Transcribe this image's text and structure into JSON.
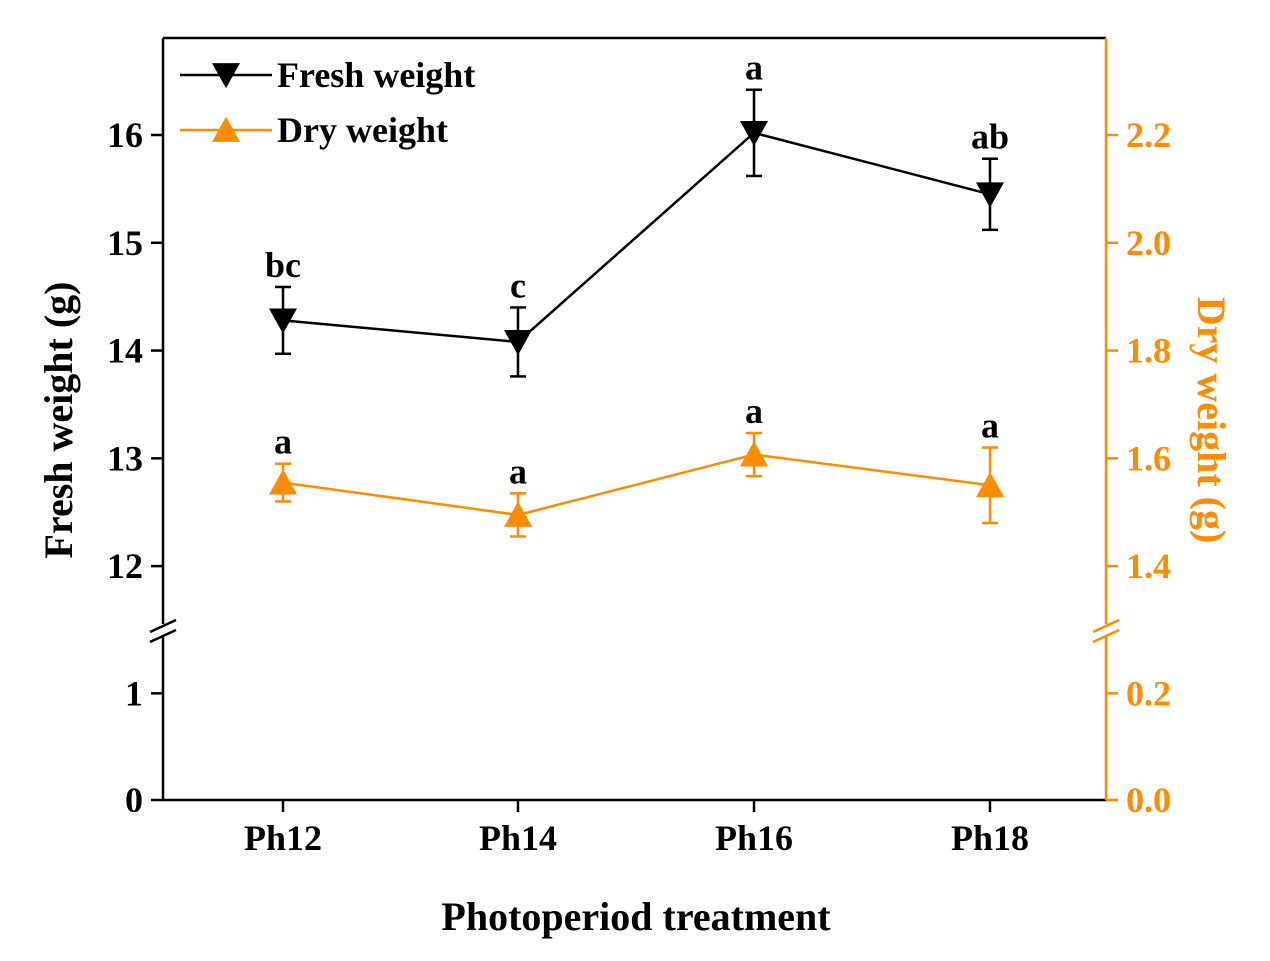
{
  "chart_data": {
    "type": "line",
    "xlabel": "Photoperiod treatment",
    "categories": [
      "Ph12",
      "Ph14",
      "Ph16",
      "Ph18"
    ],
    "series": [
      {
        "name": "Fresh weight",
        "axis": "left",
        "marker": "triangle-down",
        "color": "#000000",
        "values": [
          14.28,
          14.08,
          16.02,
          15.45
        ],
        "errors": [
          0.31,
          0.32,
          0.4,
          0.33
        ],
        "letters": [
          "bc",
          "c",
          "a",
          "ab"
        ]
      },
      {
        "name": "Dry weight",
        "axis": "right",
        "marker": "triangle-up",
        "color": "#ff8c00",
        "values": [
          1.555,
          1.495,
          1.607,
          1.55
        ],
        "errors": [
          0.035,
          0.04,
          0.04,
          0.07
        ],
        "letters": [
          "a",
          "a",
          "a",
          "a"
        ]
      }
    ],
    "left_axis": {
      "label": "Fresh weight (g)",
      "color": "#000000",
      "ticks_upper": [
        "12",
        "13",
        "14",
        "15",
        "16"
      ],
      "ticks_lower": [
        "0",
        "1"
      ],
      "upper_range": [
        11.5,
        16.9
      ],
      "lower_range": [
        0,
        1.5
      ]
    },
    "right_axis": {
      "label": "Dry weight (g)",
      "color": "#ff8c00",
      "ticks_upper": [
        "1.4",
        "1.6",
        "1.8",
        "2.0",
        "2.2"
      ],
      "ticks_lower": [
        "0.0",
        "0.2"
      ],
      "upper_range": [
        1.3,
        2.38
      ],
      "lower_range": [
        0,
        0.3
      ]
    },
    "legend": {
      "placement": "top-left",
      "entries": [
        "Fresh weight",
        "Dry weight"
      ]
    },
    "axis_break": true
  }
}
